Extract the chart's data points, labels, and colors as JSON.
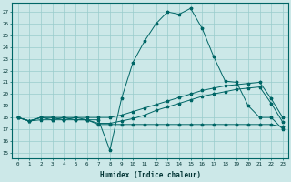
{
  "background_color": "#cce8e8",
  "grid_color": "#99cccc",
  "line_color": "#006666",
  "xlabel": "Humidex (Indice chaleur)",
  "ylim": [
    14.5,
    27.8
  ],
  "xlim": [
    -0.5,
    23.5
  ],
  "yticks": [
    15,
    16,
    17,
    18,
    19,
    20,
    21,
    22,
    23,
    24,
    25,
    26,
    27
  ],
  "xticks": [
    0,
    1,
    2,
    3,
    4,
    5,
    6,
    7,
    8,
    9,
    10,
    11,
    12,
    13,
    14,
    15,
    16,
    17,
    18,
    19,
    20,
    21,
    22,
    23
  ],
  "series1": [
    18.0,
    17.7,
    18.0,
    18.0,
    17.8,
    18.0,
    17.8,
    17.8,
    15.2,
    19.6,
    22.7,
    24.5,
    26.0,
    27.0,
    26.8,
    27.3,
    25.6,
    23.2,
    21.1,
    21.0,
    19.0,
    18.0,
    18.0,
    17.0
  ],
  "series2": [
    18.0,
    17.7,
    18.0,
    17.8,
    17.8,
    17.8,
    17.8,
    17.4,
    17.4,
    17.4,
    17.4,
    17.4,
    17.4,
    17.4,
    17.4,
    17.4,
    17.4,
    17.4,
    17.4,
    17.4,
    17.4,
    17.4,
    17.4,
    17.2
  ],
  "series3": [
    18.0,
    17.7,
    17.8,
    17.8,
    18.0,
    17.8,
    17.8,
    17.5,
    17.5,
    17.7,
    17.9,
    18.2,
    18.6,
    18.9,
    19.2,
    19.5,
    19.8,
    20.0,
    20.2,
    20.4,
    20.5,
    20.6,
    19.2,
    17.6
  ],
  "series4": [
    18.0,
    17.7,
    18.0,
    18.0,
    18.0,
    18.0,
    18.0,
    18.0,
    18.0,
    18.2,
    18.5,
    18.8,
    19.1,
    19.4,
    19.7,
    20.0,
    20.3,
    20.5,
    20.7,
    20.8,
    20.9,
    21.0,
    19.6,
    18.0
  ]
}
